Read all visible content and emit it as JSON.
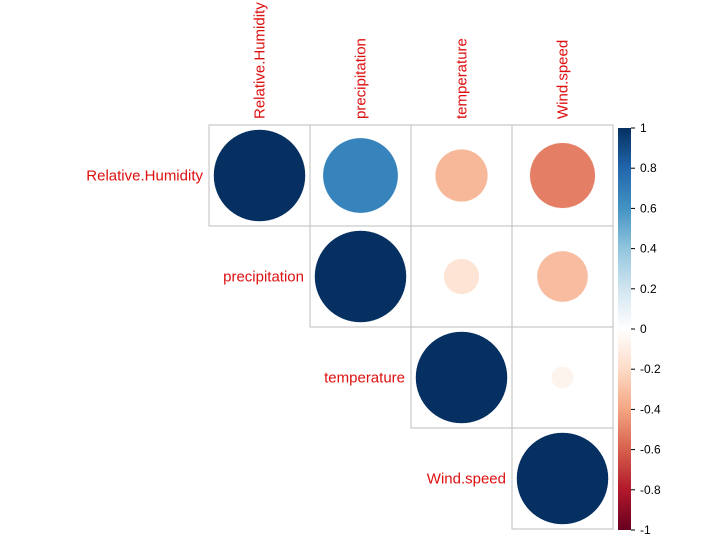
{
  "chart_data": {
    "type": "heatmap",
    "style": "corrplot-circle-upper",
    "variables": [
      "Relative.Humidity",
      "precipitation",
      "temperature",
      "Wind.speed"
    ],
    "matrix": [
      [
        1.0,
        0.67,
        -0.33,
        -0.51
      ],
      [
        0.67,
        1.0,
        -0.15,
        -0.31
      ],
      [
        -0.33,
        -0.15,
        1.0,
        -0.06
      ],
      [
        -0.51,
        -0.31,
        -0.06,
        1.0
      ]
    ],
    "colorbar": {
      "range": [
        -1,
        1
      ],
      "ticks": [
        "1",
        "0.8",
        "0.6",
        "0.4",
        "0.2",
        "0",
        "-0.2",
        "-0.4",
        "-0.6",
        "-0.8",
        "-1"
      ],
      "palette": [
        "#67001F",
        "#B2182B",
        "#D6604D",
        "#F4A582",
        "#FDDBC7",
        "#FFFFFF",
        "#D1E5F0",
        "#92C5DE",
        "#4393C3",
        "#2166AC",
        "#053061"
      ]
    },
    "label_color": "#DD1010",
    "grid_color": "#BEBEBE",
    "legend_position": "right"
  }
}
